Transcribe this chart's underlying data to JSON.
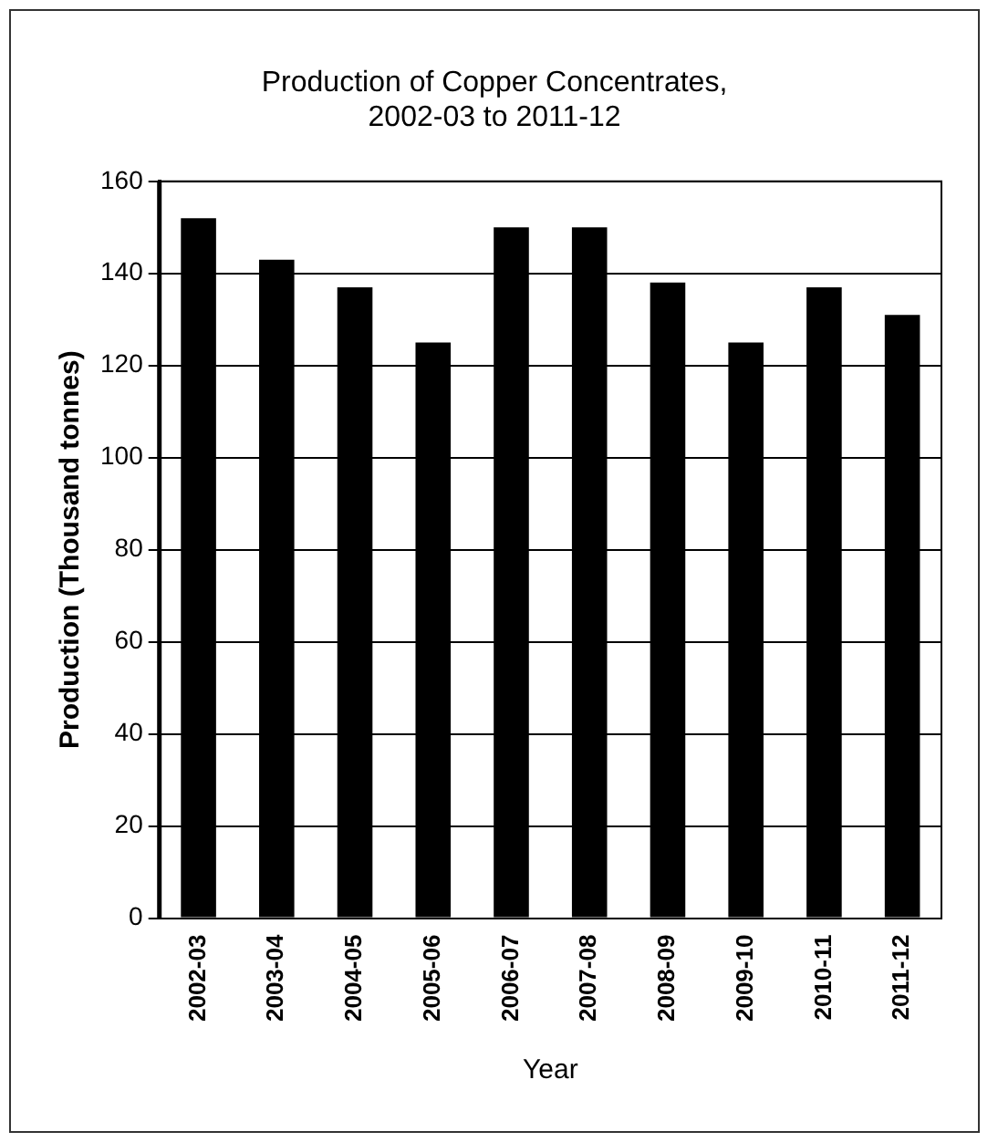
{
  "chart_data": {
    "type": "bar",
    "title": "Production of Copper Concentrates,\n2002-03 to 2011-12",
    "xlabel": "Year",
    "ylabel": "Production (Thousand tonnes)",
    "categories": [
      "2002-03",
      "2003-04",
      "2004-05",
      "2005-06",
      "2006-07",
      "2007-08",
      "2008-09",
      "2009-10",
      "2010-11",
      "2011-12"
    ],
    "values": [
      152,
      143,
      137,
      125,
      150,
      150,
      138,
      125,
      137,
      131
    ],
    "color": "#000000",
    "ylim": [
      0,
      160
    ],
    "yticks": [
      0,
      20,
      40,
      60,
      80,
      100,
      120,
      140,
      160
    ],
    "grid": "y"
  }
}
